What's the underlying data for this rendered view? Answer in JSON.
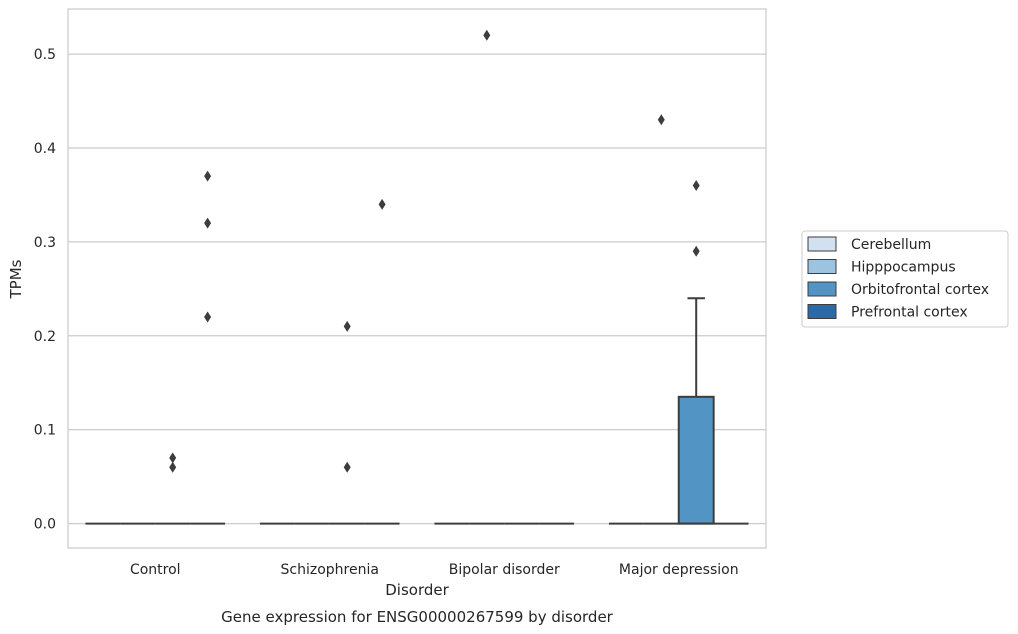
{
  "chart_data": {
    "type": "box",
    "caption": "Gene expression for ENSG00000267599 by disorder",
    "xlabel": "Disorder",
    "ylabel": "TPMs",
    "ylim": [
      -0.026,
      0.548
    ],
    "yticks": [
      0.0,
      0.1,
      0.2,
      0.3,
      0.4,
      0.5
    ],
    "ytick_labels": [
      "0.0",
      "0.1",
      "0.2",
      "0.3",
      "0.4",
      "0.5"
    ],
    "categories": [
      "Control",
      "Schizophrenia",
      "Bipolar disorder",
      "Major depression"
    ],
    "grid": "horizontal",
    "legend_position": "right, outside plot",
    "series": [
      {
        "name": "Cerebellum",
        "color": "#d1e1ef"
      },
      {
        "name": "Hipppocampus",
        "color": "#9cc3df"
      },
      {
        "name": "Orbitofrontal cortex",
        "color": "#5295c4"
      },
      {
        "name": "Prefrontal cortex",
        "color": "#2c6aa7"
      }
    ],
    "boxes": [
      {
        "category": "Control",
        "series": "Cerebellum",
        "q1": 0,
        "median": 0,
        "q3": 0,
        "whisker_low": 0,
        "whisker_high": 0,
        "outliers": []
      },
      {
        "category": "Control",
        "series": "Hipppocampus",
        "q1": 0,
        "median": 0,
        "q3": 0,
        "whisker_low": 0,
        "whisker_high": 0,
        "outliers": []
      },
      {
        "category": "Control",
        "series": "Orbitofrontal cortex",
        "q1": 0,
        "median": 0,
        "q3": 0,
        "whisker_low": 0,
        "whisker_high": 0,
        "outliers": [
          0.06,
          0.07
        ]
      },
      {
        "category": "Control",
        "series": "Prefrontal cortex",
        "q1": 0,
        "median": 0,
        "q3": 0,
        "whisker_low": 0,
        "whisker_high": 0,
        "outliers": [
          0.22,
          0.32,
          0.37
        ]
      },
      {
        "category": "Schizophrenia",
        "series": "Cerebellum",
        "q1": 0,
        "median": 0,
        "q3": 0,
        "whisker_low": 0,
        "whisker_high": 0,
        "outliers": []
      },
      {
        "category": "Schizophrenia",
        "series": "Hipppocampus",
        "q1": 0,
        "median": 0,
        "q3": 0,
        "whisker_low": 0,
        "whisker_high": 0,
        "outliers": []
      },
      {
        "category": "Schizophrenia",
        "series": "Orbitofrontal cortex",
        "q1": 0,
        "median": 0,
        "q3": 0,
        "whisker_low": 0,
        "whisker_high": 0,
        "outliers": [
          0.06,
          0.21
        ]
      },
      {
        "category": "Schizophrenia",
        "series": "Prefrontal cortex",
        "q1": 0,
        "median": 0,
        "q3": 0,
        "whisker_low": 0,
        "whisker_high": 0,
        "outliers": [
          0.34
        ]
      },
      {
        "category": "Bipolar disorder",
        "series": "Cerebellum",
        "q1": 0,
        "median": 0,
        "q3": 0,
        "whisker_low": 0,
        "whisker_high": 0,
        "outliers": []
      },
      {
        "category": "Bipolar disorder",
        "series": "Hipppocampus",
        "q1": 0,
        "median": 0,
        "q3": 0,
        "whisker_low": 0,
        "whisker_high": 0,
        "outliers": [
          0.52
        ]
      },
      {
        "category": "Bipolar disorder",
        "series": "Orbitofrontal cortex",
        "q1": 0,
        "median": 0,
        "q3": 0,
        "whisker_low": 0,
        "whisker_high": 0,
        "outliers": []
      },
      {
        "category": "Bipolar disorder",
        "series": "Prefrontal cortex",
        "q1": 0,
        "median": 0,
        "q3": 0,
        "whisker_low": 0,
        "whisker_high": 0,
        "outliers": []
      },
      {
        "category": "Major depression",
        "series": "Cerebellum",
        "q1": 0,
        "median": 0,
        "q3": 0,
        "whisker_low": 0,
        "whisker_high": 0,
        "outliers": []
      },
      {
        "category": "Major depression",
        "series": "Hipppocampus",
        "q1": 0,
        "median": 0,
        "q3": 0,
        "whisker_low": 0,
        "whisker_high": 0,
        "outliers": [
          0.43
        ]
      },
      {
        "category": "Major depression",
        "series": "Orbitofrontal cortex",
        "q1": 0,
        "median": 0,
        "q3": 0.135,
        "whisker_low": 0,
        "whisker_high": 0.24,
        "outliers": [
          0.29,
          0.36
        ]
      },
      {
        "category": "Major depression",
        "series": "Prefrontal cortex",
        "q1": 0,
        "median": 0,
        "q3": 0,
        "whisker_low": 0,
        "whisker_high": 0,
        "outliers": []
      }
    ]
  }
}
